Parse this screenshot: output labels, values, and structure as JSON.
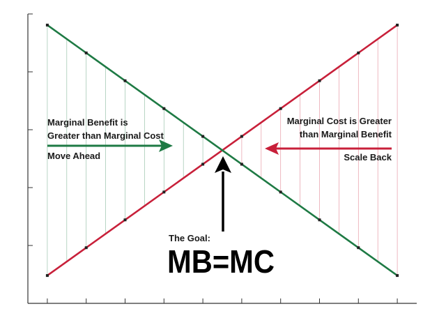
{
  "chart_data": {
    "type": "line",
    "title": "",
    "xlabel": "",
    "ylabel": "",
    "x": [
      0,
      1,
      2,
      3,
      4,
      5,
      6,
      7,
      8,
      9
    ],
    "series": [
      {
        "key": "mb",
        "values": [
          9,
          8,
          7,
          6,
          5,
          4,
          3,
          2,
          1,
          0
        ]
      },
      {
        "key": "mc",
        "values": [
          0,
          1,
          2,
          3,
          4,
          5,
          6,
          7,
          8,
          9
        ]
      }
    ],
    "xlim": [
      -0.5,
      9.5
    ],
    "ylim": [
      -1,
      9.4
    ],
    "y_ticks": 5,
    "grid": false,
    "colors": {
      "mb": "#1e7a44",
      "mc": "#c8203a",
      "axis": "#333333",
      "arrow_black": "#000000"
    }
  },
  "annotations": {
    "mb_label_line1": "Marginal Benefit is",
    "mb_label_line2": "Greater than Marginal Cost",
    "mb_action": "Move Ahead",
    "mc_label_line1": "Marginal Cost is Greater",
    "mc_label_line2": "than Marginal Benefit",
    "mc_action": "Scale Back",
    "goal_label": "The Goal:",
    "goal_equation": "MB=MC"
  }
}
